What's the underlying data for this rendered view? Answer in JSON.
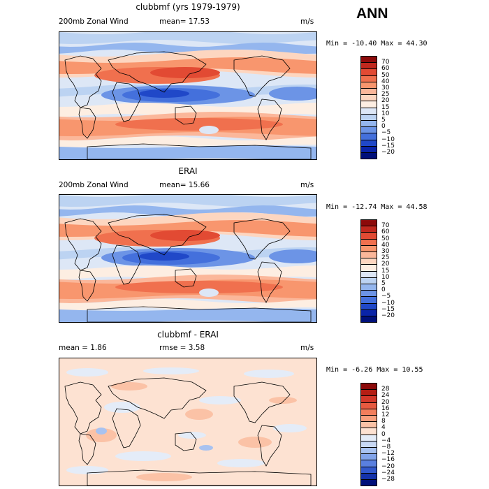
{
  "season": "ANN",
  "panels": [
    {
      "title": "clubbmf (yrs 1979-1979)",
      "variable": "200mb Zonal Wind",
      "stat1": "mean=  17.53",
      "stat2": "",
      "units": "m/s",
      "minmax": "Min = -10.40 Max =  44.30",
      "levels": [
        "70",
        "60",
        "50",
        "40",
        "30",
        "25",
        "20",
        "15",
        "10",
        "5",
        "0",
        "−5",
        "−10",
        "−15",
        "−20"
      ],
      "colors": [
        "#8c0a0a",
        "#c0281e",
        "#e24a33",
        "#f0704e",
        "#f8966e",
        "#fbb79a",
        "#fdd6c0",
        "#fdeee2",
        "#dde7f6",
        "#bcd3f2",
        "#94b6ee",
        "#6c94e6",
        "#4470dc",
        "#2048c8",
        "#0a24a8",
        "#00107a"
      ],
      "mode": "full"
    },
    {
      "title": "ERAI",
      "variable": "200mb Zonal Wind",
      "stat1": "mean=  15.66",
      "stat2": "",
      "units": "m/s",
      "minmax": "Min = -12.74 Max =  44.58",
      "levels": [
        "70",
        "60",
        "50",
        "40",
        "30",
        "25",
        "20",
        "15",
        "10",
        "5",
        "0",
        "−5",
        "−10",
        "−15",
        "−20"
      ],
      "colors": [
        "#8c0a0a",
        "#c0281e",
        "#e24a33",
        "#f0704e",
        "#f8966e",
        "#fbb79a",
        "#fdd6c0",
        "#fdeee2",
        "#dde7f6",
        "#bcd3f2",
        "#94b6ee",
        "#6c94e6",
        "#4470dc",
        "#2048c8",
        "#0a24a8",
        "#00107a"
      ],
      "mode": "full"
    },
    {
      "title": "clubbmf - ERAI",
      "variable": "",
      "stat1": "mean =   1.86",
      "stat2": "rmse =   3.58",
      "units": "m/s",
      "minmax": "Min =  -6.26 Max =  10.55",
      "levels": [
        "28",
        "24",
        "20",
        "16",
        "12",
        "8",
        "4",
        "0",
        "−4",
        "−8",
        "−12",
        "−16",
        "−20",
        "−24",
        "−28"
      ],
      "colors": [
        "#8c0a0a",
        "#b41e14",
        "#d2382a",
        "#e65a40",
        "#f27e5c",
        "#f8a07e",
        "#fbc2a6",
        "#fde2d2",
        "#e4ecf8",
        "#c8d8f4",
        "#a8c2f0",
        "#82a4ea",
        "#5a80e0",
        "#3258cc",
        "#1432aa",
        "#00107a"
      ],
      "mode": "diff"
    }
  ]
}
